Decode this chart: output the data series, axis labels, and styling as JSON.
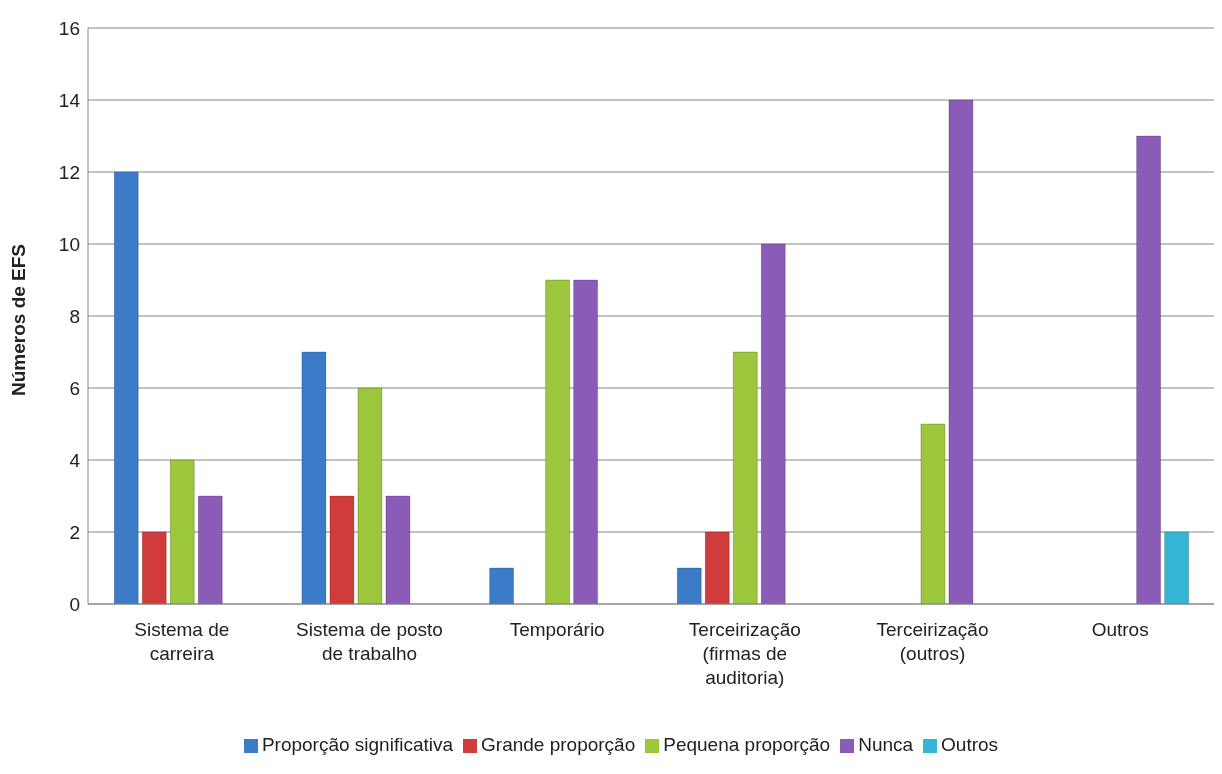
{
  "chart_data": {
    "type": "bar",
    "ylabel": "Números de EFS",
    "categories": [
      "Sistema de carreira",
      "Sistema de posto de trabalho",
      "Temporário",
      "Terceirização (firmas de auditoria)",
      "Terceirização (outros)",
      "Outros"
    ],
    "series": [
      {
        "name": "Proporção significativa",
        "color": "#3b7bc8",
        "values": [
          12,
          7,
          1,
          1,
          null,
          null
        ]
      },
      {
        "name": "Grande proporção",
        "color": "#d03b3b",
        "values": [
          2,
          3,
          null,
          2,
          null,
          null
        ]
      },
      {
        "name": "Pequena proporção",
        "color": "#9cc63c",
        "values": [
          4,
          6,
          9,
          7,
          5,
          null
        ]
      },
      {
        "name": "Nunca",
        "color": "#8a5cb8",
        "values": [
          3,
          3,
          9,
          10,
          14,
          13
        ]
      },
      {
        "name": "Outros",
        "color": "#36b6d6",
        "values": [
          null,
          null,
          null,
          null,
          null,
          2
        ]
      }
    ],
    "ylim": [
      0,
      16
    ],
    "yticks": [
      0,
      2,
      4,
      6,
      8,
      10,
      12,
      14,
      16
    ],
    "grid": "y",
    "legend": "bottom"
  }
}
